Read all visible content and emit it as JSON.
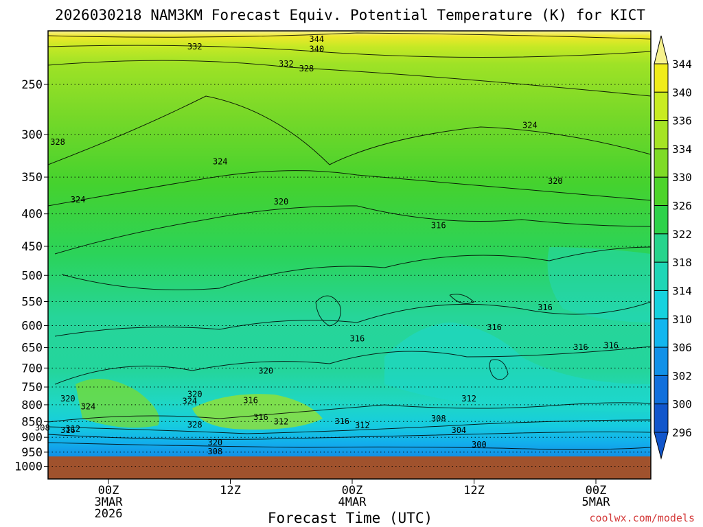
{
  "chart_data": {
    "type": "heatmap",
    "title": "2026030218 NAM3KM Forecast Equiv. Potential Temperature (K) for KICT",
    "xlabel": "Forecast Time (UTC)",
    "ylabel": "",
    "credit": "coolwx.com/models",
    "y_ticks": [
      "250",
      "300",
      "350",
      "400",
      "450",
      "500",
      "550",
      "600",
      "650",
      "700",
      "750",
      "800",
      "850",
      "900",
      "950",
      "1000"
    ],
    "ylim": [
      1000,
      200
    ],
    "x_ticks": [
      {
        "hour": 0,
        "line1": "00Z",
        "line2": "3MAR",
        "line3": "2026"
      },
      {
        "hour": 12,
        "line1": "12Z",
        "line2": "",
        "line3": ""
      },
      {
        "hour": 24,
        "line1": "00Z",
        "line2": "4MAR",
        "line3": ""
      },
      {
        "hour": 36,
        "line1": "12Z",
        "line2": "",
        "line3": ""
      },
      {
        "hour": 48,
        "line1": "00Z",
        "line2": "5MAR",
        "line3": ""
      }
    ],
    "xlim": [
      -6,
      54
    ],
    "colorbar_levels": [
      "344",
      "340",
      "336",
      "334",
      "330",
      "326",
      "322",
      "318",
      "314",
      "310",
      "306",
      "302",
      "300",
      "296"
    ],
    "colorbar_colors": [
      "#f7f28e",
      "#f0ec1a",
      "#c9ec22",
      "#a6e424",
      "#7fdb26",
      "#4dd42a",
      "#2ed24a",
      "#27d48c",
      "#1fd6b6",
      "#16d2de",
      "#12b6ef",
      "#1191e8",
      "#1170dc",
      "#1156cc"
    ],
    "surface_pressure": 965,
    "surface_color": "#a0522d",
    "contour_labels": [
      {
        "t": 20.5,
        "p": 212,
        "text": "344"
      },
      {
        "t": 20.5,
        "p": 220,
        "text": "340"
      },
      {
        "t": 8.5,
        "p": 218,
        "text": "332"
      },
      {
        "t": 17.5,
        "p": 232,
        "text": "332"
      },
      {
        "t": 19.5,
        "p": 236,
        "text": "328"
      },
      {
        "t": -5.0,
        "p": 308,
        "text": "328"
      },
      {
        "t": 41.5,
        "p": 290,
        "text": "324"
      },
      {
        "t": 11.0,
        "p": 331,
        "text": "324"
      },
      {
        "t": -3.0,
        "p": 380,
        "text": "324"
      },
      {
        "t": 17.0,
        "p": 383,
        "text": "320"
      },
      {
        "t": 44.0,
        "p": 355,
        "text": "320"
      },
      {
        "t": 32.5,
        "p": 417,
        "text": "316"
      },
      {
        "t": 24.5,
        "p": 629,
        "text": "316"
      },
      {
        "t": 38.0,
        "p": 604,
        "text": "316"
      },
      {
        "t": 43.0,
        "p": 562,
        "text": "316"
      },
      {
        "t": 46.5,
        "p": 649,
        "text": "316"
      },
      {
        "t": 49.5,
        "p": 645,
        "text": "316"
      },
      {
        "t": 15.5,
        "p": 707,
        "text": "320"
      },
      {
        "t": -4.0,
        "p": 782,
        "text": "320"
      },
      {
        "t": 8.5,
        "p": 770,
        "text": "320"
      },
      {
        "t": -2.0,
        "p": 805,
        "text": "324"
      },
      {
        "t": 8.0,
        "p": 789,
        "text": "324"
      },
      {
        "t": 14.0,
        "p": 787,
        "text": "316"
      },
      {
        "t": 8.5,
        "p": 860,
        "text": "328"
      },
      {
        "t": 15.0,
        "p": 837,
        "text": "316"
      },
      {
        "t": 17.0,
        "p": 850,
        "text": "312"
      },
      {
        "t": -4.0,
        "p": 877,
        "text": "316"
      },
      {
        "t": -3.5,
        "p": 873,
        "text": "312"
      },
      {
        "t": -6.5,
        "p": 870,
        "text": "308"
      },
      {
        "t": 23.0,
        "p": 849,
        "text": "316"
      },
      {
        "t": 25.0,
        "p": 862,
        "text": "312"
      },
      {
        "t": 32.5,
        "p": 841,
        "text": "308"
      },
      {
        "t": 34.5,
        "p": 877,
        "text": "304"
      },
      {
        "t": 35.5,
        "p": 782,
        "text": "312"
      },
      {
        "t": 36.5,
        "p": 925,
        "text": "300"
      },
      {
        "t": 10.5,
        "p": 918,
        "text": "320"
      },
      {
        "t": 10.5,
        "p": 948,
        "text": "308"
      }
    ]
  }
}
